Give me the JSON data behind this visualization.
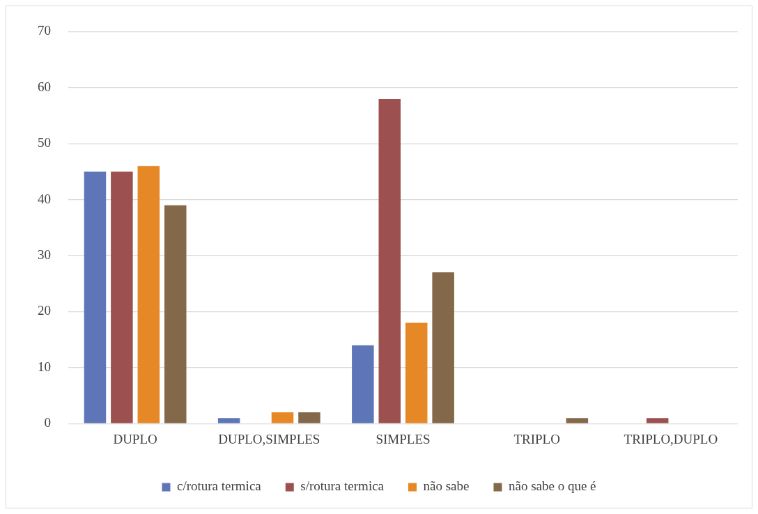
{
  "chart_data": {
    "type": "bar",
    "categories": [
      "DUPLO",
      "DUPLO,SIMPLES",
      "SIMPLES",
      "TRIPLO",
      "TRIPLO,DUPLO"
    ],
    "series": [
      {
        "name": "c/rotura termica",
        "color": "#5e76b8",
        "values": [
          45,
          1,
          14,
          0,
          0
        ]
      },
      {
        "name": "s/rotura termica",
        "color": "#9c5050",
        "values": [
          45,
          0,
          58,
          0,
          1
        ]
      },
      {
        "name": "não sabe",
        "color": "#e58825",
        "values": [
          46,
          2,
          18,
          0,
          0
        ]
      },
      {
        "name": "não sabe o que é",
        "color": "#84684a",
        "values": [
          39,
          2,
          27,
          1,
          0
        ]
      }
    ],
    "ylim": [
      0,
      70
    ],
    "yticks": [
      0,
      10,
      20,
      30,
      40,
      50,
      60,
      70
    ],
    "grid": "y",
    "legend": "bottom"
  }
}
